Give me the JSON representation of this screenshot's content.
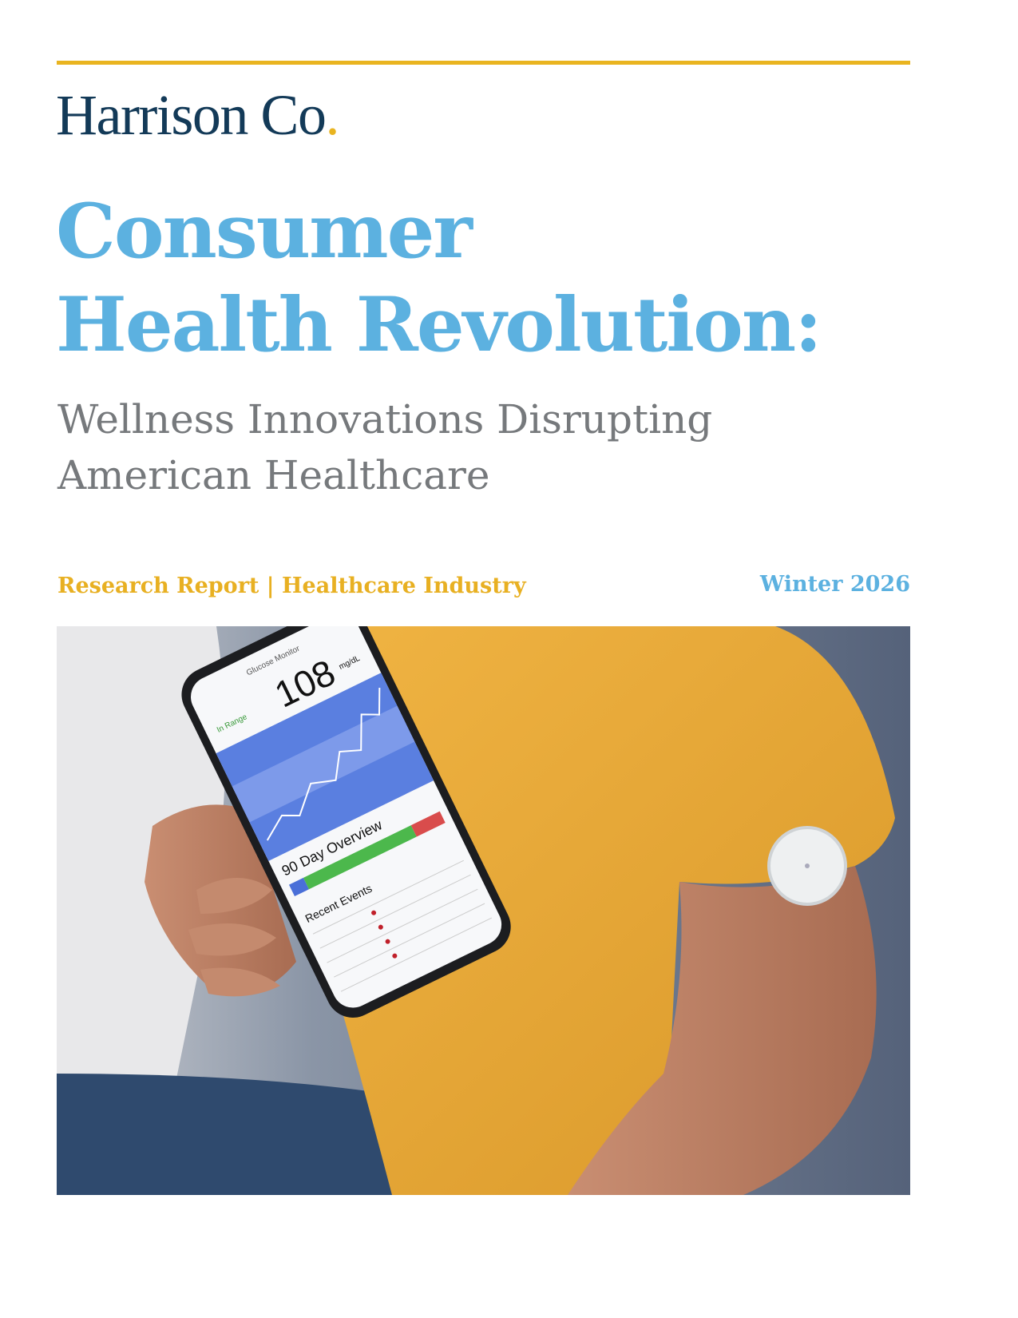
{
  "header": {
    "brand_name": "Harrison Co",
    "brand_dot": ".",
    "accent_color": "#e9b420"
  },
  "title": {
    "line1": "Consumer",
    "line2": "Health Revolution:",
    "color": "#5cb1e0"
  },
  "subtitle": {
    "line1": "Wellness Innovations Disrupting",
    "line2": "American Healthcare"
  },
  "meta": {
    "report_type": "Research Report | Healthcare Industry",
    "season": "Winter 2026"
  },
  "photo": {
    "phone_screen": {
      "app_title": "Glucose Monitor",
      "status": "In Range",
      "reading": "108",
      "unit": "mg/dL",
      "overview_label": "90 Day Overview",
      "events_label": "Recent Events"
    }
  }
}
